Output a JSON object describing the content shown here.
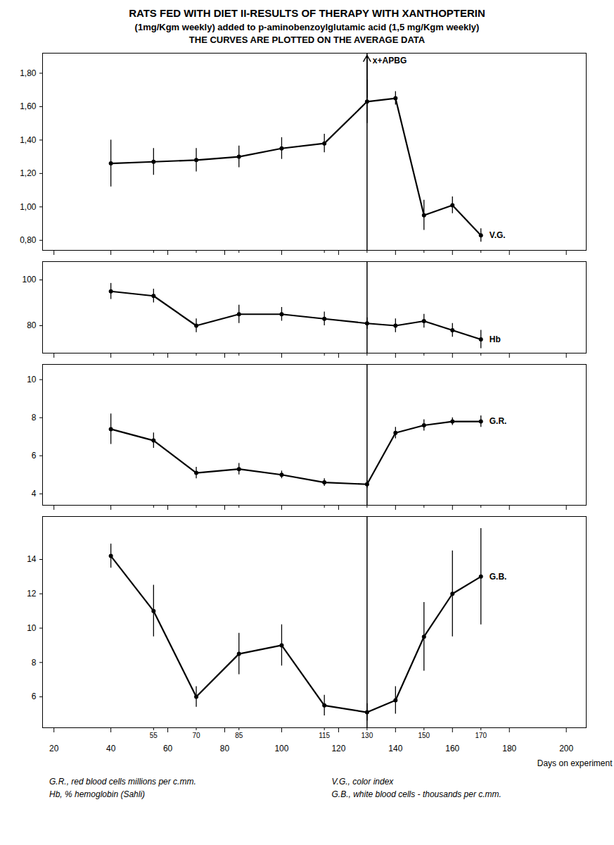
{
  "chart_data": [
    {
      "type": "line",
      "title": "RATS FED WITH DIET II-RESULTS OF THERAPY WITH XANTHOPTERIN",
      "subtitle": [
        "(1mg/Kgm weekly) added to p-aminobenzoylglutamic acid (1,5 mg/Kgm weekly)",
        "THE CURVES ARE PLOTTED ON THE AVERAGE DATA"
      ],
      "label": "V.G.",
      "annotations": [
        {
          "text": "x+APBG",
          "x": 130
        }
      ],
      "vline": 130,
      "x": [
        40,
        55,
        70,
        85,
        100,
        115,
        130,
        140,
        150,
        160,
        170
      ],
      "values": [
        1.26,
        1.27,
        1.28,
        1.3,
        1.35,
        1.38,
        1.63,
        1.65,
        0.95,
        1.01,
        0.83
      ],
      "yerr": [
        0.14,
        0.08,
        0.07,
        0.065,
        0.065,
        0.055,
        0.13,
        0.04,
        0.09,
        0.05,
        0.04
      ],
      "xlim": [
        16,
        207
      ],
      "xticks": [
        20,
        40,
        60,
        80,
        100,
        120,
        140,
        160,
        180,
        200
      ],
      "xticks_minor": [
        55,
        70,
        85,
        115,
        130,
        150,
        170
      ],
      "ylim": [
        0.74,
        1.92
      ],
      "yticks": [
        {
          "value": 0.8,
          "label": "0,80"
        },
        {
          "value": 1.0,
          "label": "1,00"
        },
        {
          "value": 1.2,
          "label": "1,20"
        },
        {
          "value": 1.4,
          "label": "1,40"
        },
        {
          "value": 1.6,
          "label": "1,60"
        },
        {
          "value": 1.8,
          "label": "1,80"
        }
      ],
      "tick_labels": "y"
    },
    {
      "type": "line",
      "label": "Hb",
      "vline": 130,
      "x": [
        40,
        55,
        70,
        85,
        100,
        115,
        130,
        140,
        150,
        160,
        170
      ],
      "values": [
        95,
        93,
        80,
        85,
        85,
        83,
        81,
        80,
        82,
        78,
        74
      ],
      "yerr": [
        3.5,
        3.0,
        3.0,
        4.0,
        3.0,
        3.0,
        2.5,
        3.0,
        3.0,
        3.0,
        4.0
      ],
      "xlim": [
        16,
        207
      ],
      "xticks": [
        20,
        40,
        60,
        80,
        100,
        120,
        140,
        160,
        180,
        200
      ],
      "xticks_minor": [
        55,
        70,
        85,
        115,
        130,
        150,
        170
      ],
      "ylim": [
        68,
        108
      ],
      "yticks": [
        80,
        100
      ],
      "tick_labels": "y"
    },
    {
      "type": "line",
      "label": "G.R.",
      "vline": 130,
      "x": [
        40,
        55,
        70,
        85,
        100,
        115,
        130,
        140,
        150,
        160,
        170
      ],
      "values": [
        7.4,
        6.8,
        5.1,
        5.3,
        5.0,
        4.6,
        4.5,
        7.2,
        7.6,
        7.8,
        7.8
      ],
      "yerr": [
        0.8,
        0.4,
        0.3,
        0.3,
        0.2,
        0.2,
        0.2,
        0.3,
        0.3,
        0.2,
        0.3
      ],
      "xlim": [
        16,
        207
      ],
      "xticks": [
        20,
        40,
        60,
        80,
        100,
        120,
        140,
        160,
        180,
        200
      ],
      "xticks_minor": [
        55,
        70,
        85,
        115,
        130,
        150,
        170
      ],
      "ylim": [
        3.4,
        10.8
      ],
      "yticks": [
        4,
        6,
        8,
        10
      ],
      "tick_labels": "y"
    },
    {
      "type": "line",
      "label": "G.B.",
      "vline": 130,
      "x": [
        40,
        55,
        70,
        85,
        100,
        115,
        130,
        140,
        150,
        160,
        170
      ],
      "values": [
        14.2,
        11.0,
        6.0,
        8.5,
        9.0,
        5.5,
        5.1,
        5.8,
        9.5,
        12.0,
        13.0
      ],
      "yerr": [
        0.7,
        1.5,
        0.6,
        1.2,
        1.2,
        0.6,
        0.5,
        0.8,
        2.0,
        2.5,
        2.8
      ],
      "xlim": [
        16,
        207
      ],
      "xticks": [
        20,
        40,
        60,
        80,
        100,
        120,
        140,
        160,
        180,
        200
      ],
      "xticks_minor": [
        55,
        70,
        85,
        115,
        130,
        150,
        170
      ],
      "xlabel": "Days on experiment",
      "ylim": [
        4.2,
        16.5
      ],
      "yticks": [
        6,
        8,
        10,
        12,
        14
      ],
      "caption": [
        "G.R., red blood cells  millions per c.mm.",
        "Hb, % hemoglobin (Sahli)",
        "V.G., color index",
        "G.B., white blood cells - thousands per c.mm."
      ]
    }
  ]
}
